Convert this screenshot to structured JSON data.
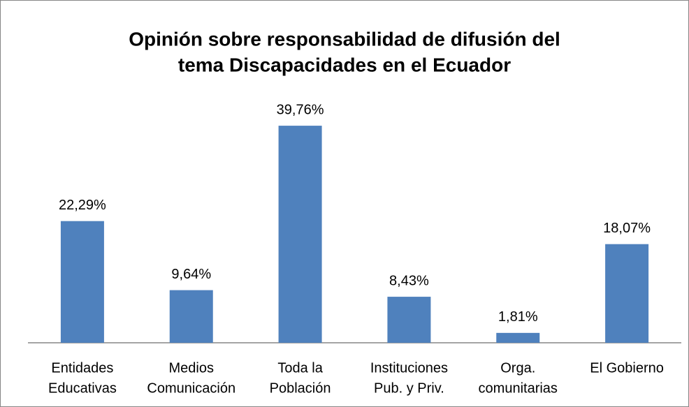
{
  "chart_data": {
    "type": "bar",
    "title": [
      "Opinión sobre responsabilidad de difusión del",
      "tema Discapacidades en el Ecuador"
    ],
    "categories": [
      [
        "Entidades",
        "Educativas"
      ],
      [
        "Medios",
        "Comunicación"
      ],
      [
        "Toda la",
        "Población"
      ],
      [
        "Instituciones",
        "Pub. y Priv."
      ],
      [
        "Orga.",
        "comunitarias"
      ],
      [
        "El Gobierno"
      ]
    ],
    "values": [
      22.29,
      9.64,
      39.76,
      8.43,
      1.81,
      18.07
    ],
    "value_labels": [
      "22,29%",
      "9,64%",
      "39,76%",
      "8,43%",
      "1,81%",
      "18,07%"
    ],
    "color": "#4f81bd"
  }
}
